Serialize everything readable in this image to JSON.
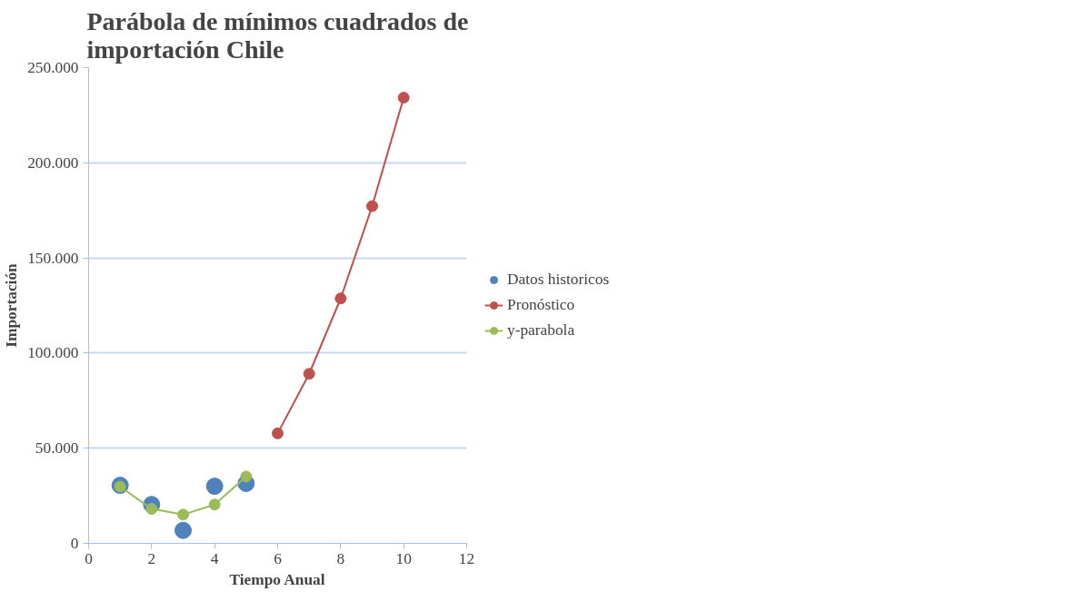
{
  "chart_data": {
    "type": "scatter",
    "title": "Parábola de mínimos cuadrados de importación Chile",
    "xlabel": "Tiempo Anual",
    "ylabel": "Importación",
    "xlim": [
      0,
      12
    ],
    "xticks": [
      0,
      2,
      4,
      6,
      8,
      10,
      12
    ],
    "ylim": [
      0,
      250000
    ],
    "yticks": [
      {
        "value": 0,
        "label": "0"
      },
      {
        "value": 50000,
        "label": "50.000"
      },
      {
        "value": 100000,
        "label": "100.000"
      },
      {
        "value": 150000,
        "label": "150.000"
      },
      {
        "value": 200000,
        "label": "200.000"
      },
      {
        "value": 250000,
        "label": "250.000"
      }
    ],
    "grid": "y",
    "legend": "right",
    "marker": "circle",
    "series": [
      {
        "name": "Datos historicos",
        "color": "#4f81bd",
        "x": [
          1,
          2,
          3,
          4,
          5
        ],
        "values": [
          30500,
          20400,
          6800,
          30000,
          31500
        ]
      },
      {
        "name": "Pronóstico",
        "type": "line",
        "color": "#c0504d",
        "x": [
          6,
          7,
          8,
          9,
          10
        ],
        "values": [
          57800,
          89100,
          128700,
          177200,
          234200
        ]
      },
      {
        "name": "y-parabola",
        "type": "line",
        "color": "#9bbb59",
        "x": [
          1,
          2,
          3,
          4,
          5
        ],
        "values": [
          29800,
          18100,
          15100,
          20400,
          35100
        ]
      }
    ]
  }
}
